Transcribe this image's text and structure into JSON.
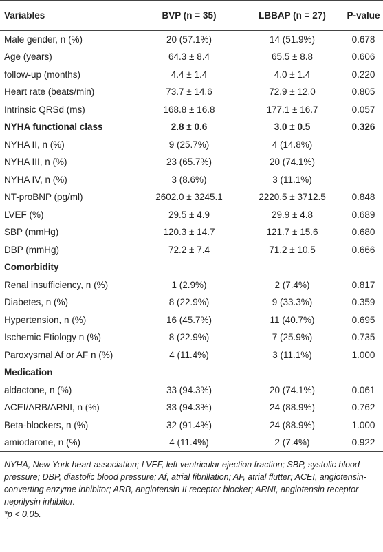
{
  "table": {
    "header": [
      "Variables",
      "BVP (n = 35)",
      "LBBAP (n = 27)",
      "P-value"
    ],
    "rows": [
      [
        "Male gender, n (%)",
        "20 (57.1%)",
        "14 (51.9%)",
        "0.678"
      ],
      [
        "Age (years)",
        "64.3 ± 8.4",
        "65.5 ± 8.8",
        "0.606"
      ],
      [
        "follow-up (months)",
        "4.4 ± 1.4",
        "4.0 ± 1.4",
        "0.220"
      ],
      [
        "Heart rate (beats/min)",
        "73.7 ± 14.6",
        "72.9 ± 12.0",
        "0.805"
      ],
      [
        "Intrinsic QRSd (ms)",
        "168.8 ± 16.8",
        "177.1 ± 16.7",
        "0.057"
      ],
      [
        "NYHA functional class",
        "2.8 ± 0.6",
        "3.0 ± 0.5",
        "0.326"
      ],
      [
        "NYHA II, n (%)",
        "9 (25.7%)",
        "4 (14.8%)"
      ],
      [
        "NYHA III, n (%)",
        "23 (65.7%)",
        "20 (74.1%)"
      ],
      [
        "NYHA IV, n (%)",
        "3 (8.6%)",
        "3 (11.1%)"
      ],
      [
        "NT-proBNP (pg/ml)",
        "2602.0 ± 3245.1",
        "2220.5 ± 3712.5",
        "0.848"
      ],
      [
        "LVEF (%)",
        "29.5 ± 4.9",
        "29.9 ± 4.8",
        "0.689"
      ],
      [
        "SBP (mmHg)",
        "120.3 ± 14.7",
        "121.7 ± 15.6",
        "0.680"
      ],
      [
        "DBP (mmHg)",
        "72.2 ± 7.4",
        "71.2 ± 10.5",
        "0.666"
      ],
      [
        "Comorbidity"
      ],
      [
        "Renal insufficiency, n (%)",
        "1 (2.9%)",
        "2 (7.4%)",
        "0.817"
      ],
      [
        "Diabetes, n (%)",
        "8 (22.9%)",
        "9 (33.3%)",
        "0.359"
      ],
      [
        "Hypertension, n (%)",
        "16 (45.7%)",
        "11 (40.7%)",
        "0.695"
      ],
      [
        "Ischemic Etiology n (%)",
        "8 (22.9%)",
        "7 (25.9%)",
        "0.735"
      ],
      [
        "Paroxysmal Af or AF n (%)",
        "4 (11.4%)",
        "3 (11.1%)",
        "1.000"
      ],
      [
        "Medication"
      ],
      [
        "aldactone, n (%)",
        "33 (94.3%)",
        "20 (74.1%)",
        "0.061"
      ],
      [
        "ACEI/ARB/ARNI, n (%)",
        "33 (94.3%)",
        "24 (88.9%)",
        "0.762"
      ],
      [
        "Beta-blockers, n (%)",
        "32 (91.4%)",
        "24 (88.9%)",
        "1.000"
      ],
      [
        "amiodarone, n (%)",
        "4 (11.4%)",
        "2 (7.4%)",
        "0.922"
      ]
    ]
  },
  "footnote": {
    "text": "NYHA, New York heart association; LVEF, left ventricular ejection fraction; SBP, systolic blood pressure; DBP, diastolic blood pressure; Af, atrial fibrillation; AF, atrial flutter; ACEI, angiotensin-converting enzyme inhibitor; ARB, angiotensin II receptor blocker; ARNI, angiotensin receptor neprilysin inhibitor.",
    "significance": "*p < 0.05."
  }
}
